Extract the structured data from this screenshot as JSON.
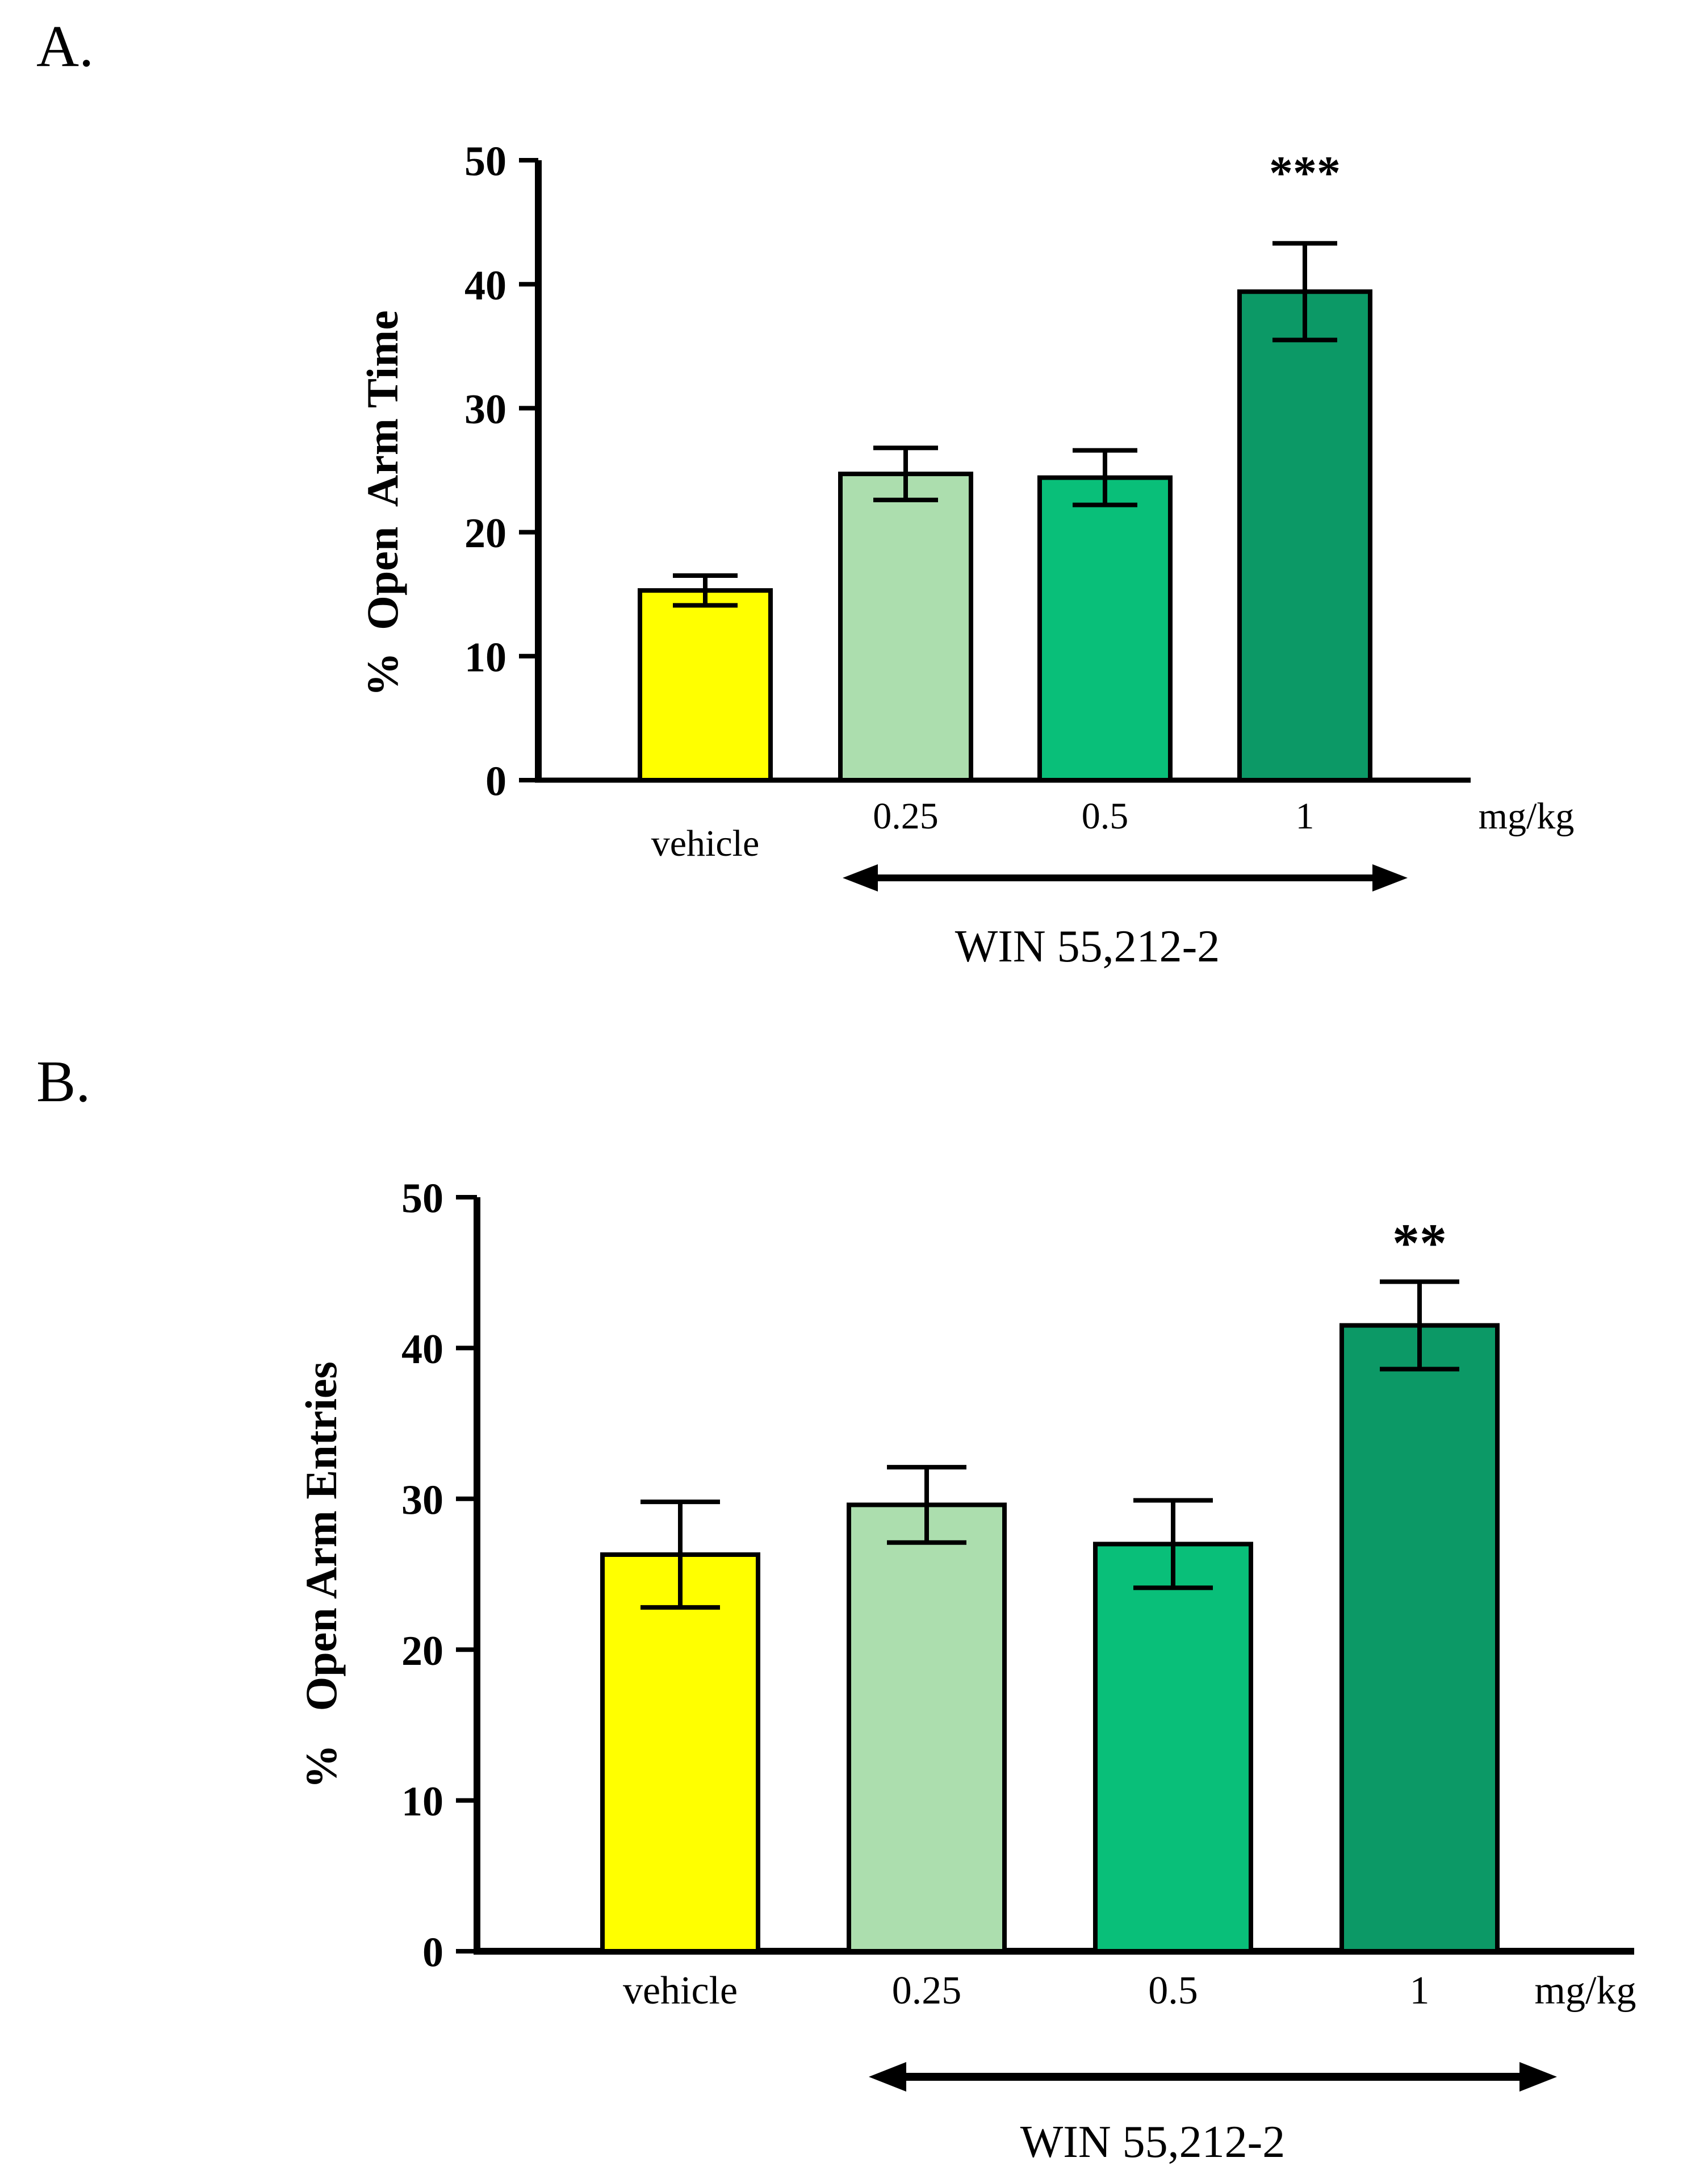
{
  "figure": {
    "background": "#FFFFFF",
    "ink": "#000000"
  },
  "chart_data": [
    {
      "id": "A",
      "panel_label": "A.",
      "type": "bar",
      "title": "",
      "ylabel": "%  Open  Arm Time",
      "xlabel": "",
      "unit_label": "mg/kg",
      "categories": [
        "vehicle",
        "0.25",
        "0.5",
        "1"
      ],
      "values": [
        15.3,
        24.7,
        24.4,
        39.4
      ],
      "errors": [
        1.2,
        2.1,
        2.2,
        3.9
      ],
      "bar_colors": [
        "#FFFF00",
        "#ACDEAE",
        "#09BF79",
        "#0C9966"
      ],
      "bar_edge_color": "#000000",
      "significance": [
        "",
        "",
        "",
        "***"
      ],
      "ylim": [
        0,
        50
      ],
      "yticks": [
        0,
        10,
        20,
        30,
        40,
        50
      ],
      "grid": false,
      "legend_position": "none",
      "group_annotation": {
        "text": "WIN 55,212-2",
        "style": "double-headed-arrow",
        "covers": [
          "0.25",
          "0.5",
          "1"
        ]
      }
    },
    {
      "id": "B",
      "panel_label": "B.",
      "type": "bar",
      "title": "",
      "ylabel": "%   Open Arm Entries",
      "xlabel": "",
      "unit_label": "mg/kg",
      "categories": [
        "vehicle",
        "0.25",
        "0.5",
        "1"
      ],
      "values": [
        26.3,
        29.6,
        27.0,
        41.5
      ],
      "errors": [
        3.5,
        2.5,
        2.9,
        2.9
      ],
      "bar_colors": [
        "#FFFF00",
        "#ACDEAE",
        "#09BF79",
        "#0C9966"
      ],
      "bar_edge_color": "#000000",
      "significance": [
        "",
        "",
        "",
        "**"
      ],
      "ylim": [
        0,
        50
      ],
      "yticks": [
        0,
        10,
        20,
        30,
        40,
        50
      ],
      "grid": false,
      "legend_position": "none",
      "group_annotation": {
        "text": "WIN 55,212-2",
        "style": "double-headed-arrow",
        "covers": [
          "0.25",
          "0.5",
          "1"
        ]
      }
    }
  ]
}
